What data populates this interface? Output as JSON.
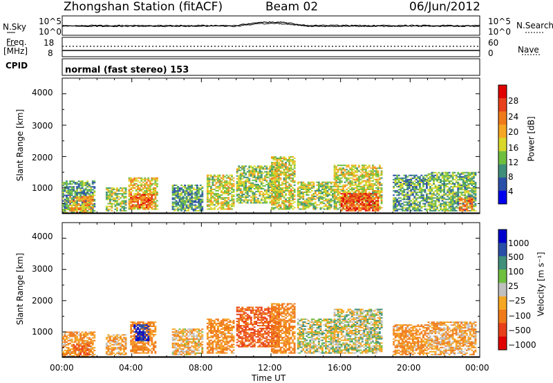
{
  "header": {
    "station": "Zhongshan Station (fitACF)",
    "beam": "Beam 02",
    "date": "06/Jun/2012"
  },
  "noise_panel": {
    "left_label": "N.Sky",
    "right_label": "N.Search",
    "left_top": "10^5",
    "left_bottom": "10^0",
    "right_top": "10^5",
    "right_bottom": "10^0"
  },
  "freq_panel": {
    "left_label_1": "Freq.",
    "left_label_2": "[MHz]",
    "left_top": "18",
    "left_bottom": "8",
    "right_label": "Nave",
    "right_top": "60",
    "right_bottom": "0"
  },
  "cpid_panel": {
    "label": "CPID",
    "mode_text": "normal (fast stereo) 153"
  },
  "power_panel": {
    "ylabel": "Slant Range [km]",
    "yticks": [
      "4000",
      "3000",
      "2000",
      "1000"
    ],
    "colorbar_label": "Power [dB]",
    "colorbar_ticks": [
      "28",
      "24",
      "20",
      "16",
      "12",
      "8",
      "4"
    ],
    "colors": [
      "#0000ee",
      "#2a4fa8",
      "#3f8f7a",
      "#6fbf3f",
      "#d8d82a",
      "#f5a623",
      "#f07a1a",
      "#e8401a",
      "#e00000"
    ]
  },
  "velocity_panel": {
    "ylabel": "Slant Range [km]",
    "yticks": [
      "4000",
      "3000",
      "2000",
      "1000"
    ],
    "colorbar_label": "Velocity [m s⁻¹]",
    "colorbar_ticks": [
      "1000",
      "500",
      "100",
      "25",
      "−25",
      "−100",
      "−500",
      "−1000"
    ],
    "colors": [
      "#0000cc",
      "#2a4fa8",
      "#3f8f7a",
      "#6fbf3f",
      "#c0c0c0",
      "#f5a623",
      "#f07a1a",
      "#e8401a",
      "#e00000"
    ]
  },
  "xaxis": {
    "ticks": [
      "00:00",
      "04:00",
      "08:00",
      "12:00",
      "16:00",
      "20:00",
      "00:00"
    ],
    "label": "Time UT"
  },
  "chart_data": {
    "type": "heatmap",
    "title": "Zhongshan Station (fitACF)  Beam 02  06/Jun/2012",
    "xlabel": "Time UT",
    "ylabel": "Slant Range [km]",
    "xlim": [
      0,
      24
    ],
    "ylim": [
      180,
      4500
    ],
    "panels": [
      {
        "name": "Power [dB]",
        "clim": [
          0,
          32
        ],
        "regions": [
          {
            "t0": 0.0,
            "t1": 1.9,
            "r0": 200,
            "r1": 1200,
            "value": 10
          },
          {
            "t0": 0.4,
            "t1": 1.8,
            "r0": 200,
            "r1": 700,
            "value": 20
          },
          {
            "t0": 2.5,
            "t1": 3.7,
            "r0": 250,
            "r1": 1000,
            "value": 14
          },
          {
            "t0": 3.8,
            "t1": 5.4,
            "r0": 300,
            "r1": 1300,
            "value": 18
          },
          {
            "t0": 3.9,
            "t1": 5.2,
            "r0": 350,
            "r1": 800,
            "value": 24
          },
          {
            "t0": 6.3,
            "t1": 8.0,
            "r0": 250,
            "r1": 1100,
            "value": 10
          },
          {
            "t0": 8.3,
            "t1": 9.8,
            "r0": 300,
            "r1": 1400,
            "value": 16
          },
          {
            "t0": 10.0,
            "t1": 12.4,
            "r0": 500,
            "r1": 1700,
            "value": 14
          },
          {
            "t0": 12.0,
            "t1": 13.3,
            "r0": 300,
            "r1": 2000,
            "value": 16
          },
          {
            "t0": 13.5,
            "t1": 15.6,
            "r0": 300,
            "r1": 1200,
            "value": 14
          },
          {
            "t0": 15.6,
            "t1": 18.4,
            "r0": 300,
            "r1": 1700,
            "value": 16
          },
          {
            "t0": 16.0,
            "t1": 18.2,
            "r0": 250,
            "r1": 800,
            "value": 26
          },
          {
            "t0": 19.0,
            "t1": 21.0,
            "r0": 250,
            "r1": 1400,
            "value": 10
          },
          {
            "t0": 21.0,
            "t1": 23.8,
            "r0": 250,
            "r1": 1500,
            "value": 12
          },
          {
            "t0": 22.8,
            "t1": 23.6,
            "r0": 250,
            "r1": 700,
            "value": 24
          }
        ]
      },
      {
        "name": "Velocity [m s-1]",
        "clim": [
          -1000,
          1000
        ],
        "regions": [
          {
            "t0": 0.0,
            "t1": 1.9,
            "r0": 200,
            "r1": 1000,
            "value": -100
          },
          {
            "t0": 0.6,
            "t1": 1.6,
            "r0": 250,
            "r1": 600,
            "value": -300
          },
          {
            "t0": 2.5,
            "t1": 3.7,
            "r0": 250,
            "r1": 900,
            "value": -80
          },
          {
            "t0": 3.9,
            "t1": 5.3,
            "r0": 300,
            "r1": 1300,
            "value": -150
          },
          {
            "t0": 4.1,
            "t1": 4.9,
            "r0": 700,
            "r1": 1200,
            "value": 700
          },
          {
            "t0": 6.3,
            "t1": 8.0,
            "r0": 250,
            "r1": 1100,
            "value": -60
          },
          {
            "t0": 8.3,
            "t1": 9.8,
            "r0": 300,
            "r1": 1400,
            "value": -120
          },
          {
            "t0": 10.0,
            "t1": 12.4,
            "r0": 500,
            "r1": 1800,
            "value": -300
          },
          {
            "t0": 12.0,
            "t1": 13.3,
            "r0": 300,
            "r1": 1900,
            "value": -150
          },
          {
            "t0": 13.5,
            "t1": 15.6,
            "r0": 300,
            "r1": 1400,
            "value": 0
          },
          {
            "t0": 15.6,
            "t1": 18.4,
            "r0": 300,
            "r1": 1700,
            "value": 0
          },
          {
            "t0": 19.0,
            "t1": 21.0,
            "r0": 250,
            "r1": 1200,
            "value": -120
          },
          {
            "t0": 21.0,
            "t1": 23.8,
            "r0": 250,
            "r1": 1300,
            "value": -80
          }
        ]
      }
    ]
  }
}
